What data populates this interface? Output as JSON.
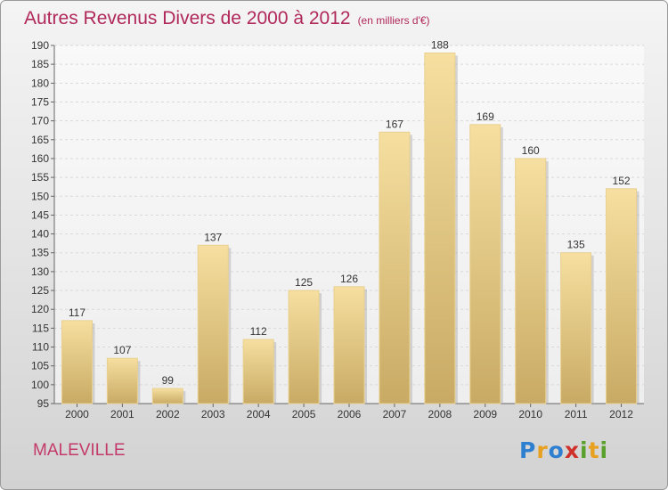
{
  "title": "Autres Revenus Divers de 2000 à 2012",
  "subtitle": "(en milliers d'€)",
  "town": "MALEVILLE",
  "logo": {
    "letters": [
      "P",
      "r",
      "o",
      "x",
      "i",
      "t",
      "i"
    ],
    "colors": [
      "#2f7fd0",
      "#e8a020",
      "#2f7fd0",
      "#d0302a",
      "#5aa02c",
      "#e8a020",
      "#5aa02c"
    ]
  },
  "colors": {
    "title": "#b0285a",
    "bar_light": "#f6dfa0",
    "bar_dark": "#c8aa64"
  },
  "chart_data": {
    "type": "bar",
    "title": "Autres Revenus Divers de 2000 à 2012",
    "subtitle": "(en milliers d'€)",
    "categories": [
      "2000",
      "2001",
      "2002",
      "2003",
      "2004",
      "2005",
      "2006",
      "2007",
      "2008",
      "2009",
      "2010",
      "2011",
      "2012"
    ],
    "values": [
      117,
      107,
      99,
      137,
      112,
      125,
      126,
      167,
      188,
      169,
      160,
      135,
      152
    ],
    "ylim": [
      95,
      190
    ],
    "yticks": [
      95,
      100,
      105,
      110,
      115,
      120,
      125,
      130,
      135,
      140,
      145,
      150,
      155,
      160,
      165,
      170,
      175,
      180,
      185,
      190
    ],
    "grid": true
  }
}
